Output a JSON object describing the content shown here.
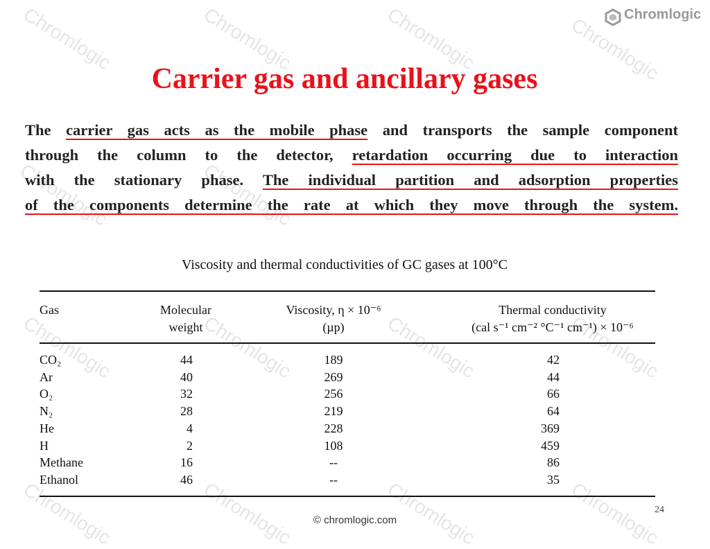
{
  "watermark": "Chromlogic",
  "logo": "Chromlogic",
  "title": "Carrier gas and ancillary gases",
  "paragraph": {
    "lines": [
      [
        {
          "text": "The "
        },
        {
          "text": "carrier gas acts as the mobile phase",
          "underline": true
        },
        {
          "text": " and transports the sample component"
        }
      ],
      [
        {
          "text": "through the column to the detector, "
        },
        {
          "text": "retardation occurring due to interaction",
          "underline": true
        }
      ],
      [
        {
          "text": "with the stationary phase. "
        },
        {
          "text": "The individual partition and adsorption properties",
          "underline": true
        }
      ],
      [
        {
          "text": "of the components determine the rate at which they move through the system.",
          "underline": true
        }
      ]
    ]
  },
  "table": {
    "caption": "Viscosity and thermal conductivities of GC gases at 100°C",
    "header": [
      [
        "Gas"
      ],
      [
        "Molecular",
        "weight"
      ],
      [
        "Viscosity, η × 10⁻⁶",
        "(µp)"
      ],
      [
        "Thermal conductivity",
        "(cal s⁻¹ cm⁻² °C⁻¹ cm⁻¹) × 10⁻⁶"
      ]
    ],
    "rows": [
      [
        "CO₂",
        44,
        189,
        42
      ],
      [
        "Ar",
        40,
        269,
        44
      ],
      [
        "O₂",
        32,
        256,
        66
      ],
      [
        "N₂",
        28,
        219,
        64
      ],
      [
        "He",
        4,
        228,
        369
      ],
      [
        "H",
        2,
        108,
        459
      ],
      [
        "Methane",
        16,
        "--",
        86
      ],
      [
        "Ethanol",
        46,
        "--",
        35
      ]
    ]
  },
  "footer": "© chromlogic.com",
  "page_number": "24"
}
